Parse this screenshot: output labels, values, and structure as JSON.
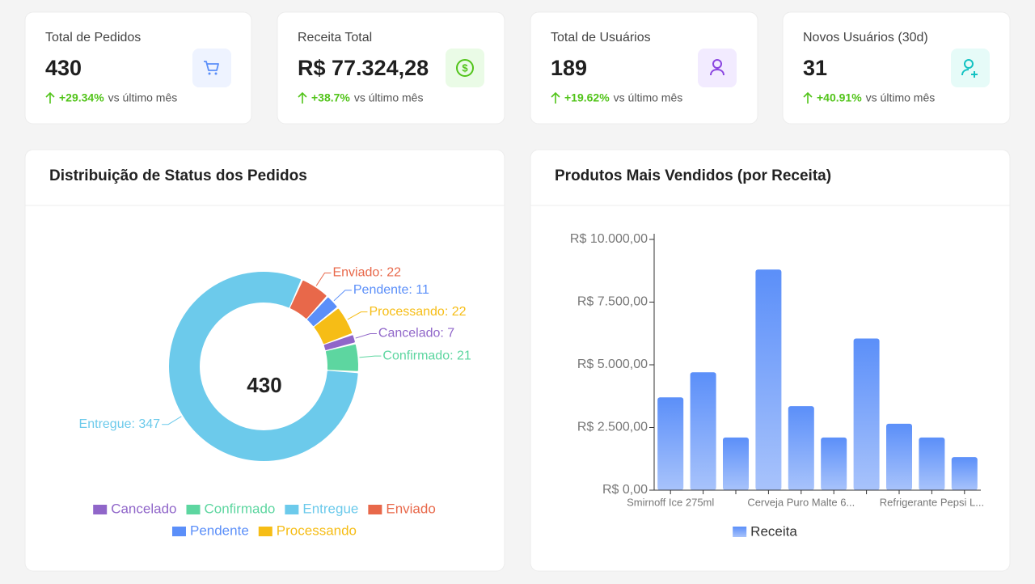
{
  "cards": [
    {
      "title": "Total de Pedidos",
      "value": "430",
      "change": "+29.34%",
      "note": "vs último mês"
    },
    {
      "title": "Receita Total",
      "value": "R$ 77.324,28",
      "change": "+38.7%",
      "note": "vs último mês"
    },
    {
      "title": "Total de Usuários",
      "value": "189",
      "change": "+19.62%",
      "note": "vs último mês"
    },
    {
      "title": "Novos Usuários (30d)",
      "value": "31",
      "change": "+40.91%",
      "note": "vs último mês"
    }
  ],
  "chart_data": [
    {
      "type": "donut",
      "title": "Distribuição de Status dos Pedidos",
      "center_label": "430",
      "categories": [
        "Cancelado",
        "Confirmado",
        "Entregue",
        "Enviado",
        "Pendente",
        "Processando"
      ],
      "values": [
        7,
        21,
        347,
        22,
        11,
        22
      ],
      "value_labels": [
        "Cancelado: 7",
        "Confirmado: 21",
        "Entregue: 347",
        "Enviado: 22",
        "Pendente: 11",
        "Processando: 22"
      ],
      "colors": [
        "#9066c9",
        "#5dd6a0",
        "#6ccaeb",
        "#e8684a",
        "#5b8ff9",
        "#f6bd16"
      ],
      "legend": "bottom"
    },
    {
      "type": "bar",
      "title": "Produtos Mais Vendidos (por Receita)",
      "categories": [
        "Smirnoff Ice 275ml",
        null,
        null,
        null,
        "Cerveja Puro Malte 6...",
        null,
        null,
        null,
        "Refrigerante Pepsi L...",
        null
      ],
      "series": [
        {
          "name": "Receita",
          "color": "#5b8ff9",
          "values": [
            3700,
            4700,
            2100,
            8800,
            3350,
            2100,
            6050,
            2650,
            2100,
            1320
          ]
        }
      ],
      "ylim": [
        0,
        10000
      ],
      "yticks": [
        {
          "value": 0,
          "label": "R$ 0,00"
        },
        {
          "value": 2500,
          "label": "R$ 2.500,00"
        },
        {
          "value": 5000,
          "label": "R$ 5.000,00"
        },
        {
          "value": 7500,
          "label": "R$ 7.500,00"
        },
        {
          "value": 10000,
          "label": "R$ 10.000,00"
        }
      ],
      "legend": "bottom"
    }
  ]
}
